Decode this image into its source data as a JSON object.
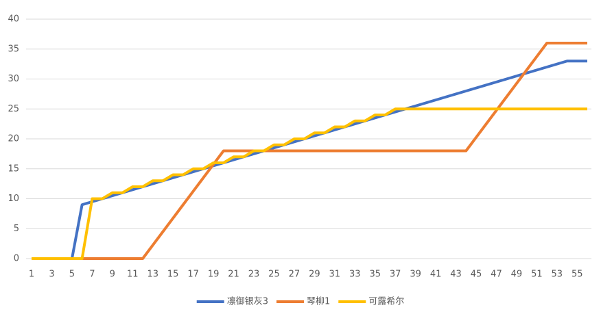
{
  "chart_data": {
    "type": "line",
    "categories": [
      1,
      null,
      3,
      null,
      5,
      null,
      7,
      null,
      9,
      null,
      11,
      null,
      13,
      null,
      15,
      null,
      17,
      null,
      19,
      null,
      21,
      null,
      23,
      null,
      25,
      null,
      27,
      null,
      29,
      null,
      31,
      null,
      33,
      null,
      35,
      null,
      37,
      null,
      39,
      null,
      41,
      null,
      43,
      null,
      45,
      null,
      47,
      null,
      49,
      null,
      51,
      null,
      53,
      null,
      55,
      null
    ],
    "ylim": [
      0,
      40
    ],
    "yticks": [
      0,
      5,
      10,
      15,
      20,
      25,
      30,
      35,
      40
    ],
    "grid": true,
    "legend": "bottom",
    "series": [
      {
        "name": "凛御银灰3",
        "color": "#4472c4",
        "values": [
          0,
          0,
          0,
          0,
          0,
          9,
          9.5,
          10,
          10.5,
          11,
          11.5,
          12,
          12.5,
          13,
          13.5,
          14,
          14.5,
          15,
          15.5,
          16,
          16.5,
          17,
          17.5,
          18,
          18.5,
          19,
          19.5,
          20,
          20.5,
          21,
          21.5,
          22,
          22.5,
          23,
          23.5,
          24,
          24.5,
          25,
          25.5,
          26,
          26.5,
          27,
          27.5,
          28,
          28.5,
          29,
          29.5,
          30,
          30.5,
          31,
          31.5,
          32,
          32.5,
          33,
          33,
          33
        ]
      },
      {
        "name": "琴柳1",
        "color": "#ed7d31",
        "values": [
          0,
          0,
          0,
          0,
          0,
          0,
          0,
          0,
          0,
          0,
          0,
          0,
          2.25,
          4.5,
          6.75,
          9,
          11.25,
          13.5,
          15.75,
          18,
          18,
          18,
          18,
          18,
          18,
          18,
          18,
          18,
          18,
          18,
          18,
          18,
          18,
          18,
          18,
          18,
          18,
          18,
          18,
          18,
          18,
          18,
          18,
          18,
          20.25,
          22.5,
          24.75,
          27,
          29.25,
          31.5,
          33.75,
          36,
          36,
          36,
          36,
          36
        ]
      },
      {
        "name": "可露希尔",
        "color": "#ffc000",
        "values": [
          0,
          0,
          0,
          0,
          0,
          0,
          10,
          10,
          11,
          11,
          12,
          12,
          13,
          13,
          14,
          14,
          15,
          15,
          16,
          16,
          17,
          17,
          18,
          18,
          19,
          19,
          20,
          20,
          21,
          21,
          22,
          22,
          23,
          23,
          24,
          24,
          25,
          25,
          25,
          25,
          25,
          25,
          25,
          25,
          25,
          25,
          25,
          25,
          25,
          25,
          25,
          25,
          25,
          25,
          25,
          25
        ]
      }
    ]
  }
}
